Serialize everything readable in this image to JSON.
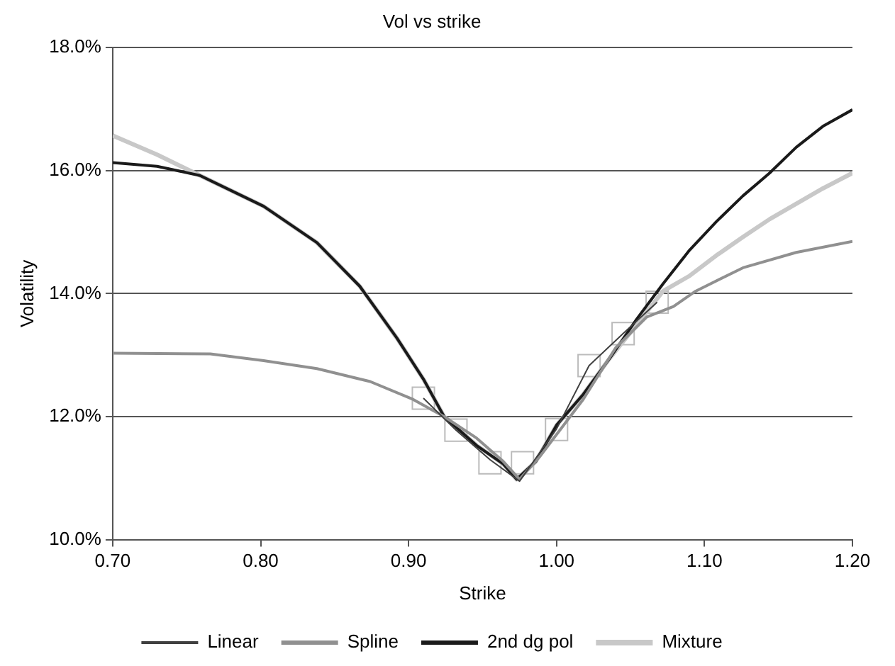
{
  "chart_data": {
    "type": "line",
    "title": "Vol vs strike",
    "xlabel": "Strike",
    "ylabel": "Volatility",
    "xlim": [
      0.7,
      1.2
    ],
    "xticks": [
      {
        "value": 0.7,
        "label": "0.70"
      },
      {
        "value": 0.8,
        "label": "0.80"
      },
      {
        "value": 0.9,
        "label": "0.90"
      },
      {
        "value": 1.0,
        "label": "1.00"
      },
      {
        "value": 1.1,
        "label": "1.10"
      },
      {
        "value": 1.2,
        "label": "1.20"
      }
    ],
    "ylim": [
      10,
      18
    ],
    "yticks": [
      {
        "value": 10,
        "label": "10.0%"
      },
      {
        "value": 12,
        "label": "12.0%"
      },
      {
        "value": 14,
        "label": "14.0%"
      },
      {
        "value": 16,
        "label": "16.0%"
      },
      {
        "value": 18,
        "label": "18.0%"
      }
    ],
    "grid": "y",
    "legend": "bottom",
    "series": [
      {
        "type": "scatter",
        "marker": "square",
        "color": "#bbbbbb",
        "x": [
          0.91,
          0.932,
          0.955,
          0.977,
          1.0,
          1.022,
          1.045,
          1.068
        ],
        "values": [
          12.3,
          11.78,
          11.25,
          11.25,
          11.79,
          12.83,
          13.35,
          13.86
        ]
      },
      {
        "name": "Linear",
        "marker": "none",
        "color": "#404040",
        "x": [
          0.91,
          0.932,
          0.955,
          0.975,
          1.0,
          1.022,
          1.045,
          1.068
        ],
        "values": [
          12.3,
          11.78,
          11.3,
          10.95,
          11.8,
          12.83,
          13.35,
          13.86
        ]
      },
      {
        "name": "Spline",
        "marker": "none",
        "color": "#909090",
        "x": [
          0.7,
          0.766,
          0.802,
          0.838,
          0.874,
          0.903,
          0.924,
          0.946,
          0.964,
          0.975,
          0.989,
          1.018,
          1.04,
          1.061,
          1.079,
          1.094,
          1.126,
          1.162,
          1.2
        ],
        "values": [
          13.03,
          13.02,
          12.91,
          12.78,
          12.57,
          12.28,
          12.0,
          11.65,
          11.27,
          10.98,
          11.36,
          12.28,
          13.12,
          13.62,
          13.79,
          14.04,
          14.42,
          14.67,
          14.85
        ]
      },
      {
        "name": "2nd dg pol",
        "marker": "none",
        "color": "#1a1a1a",
        "x": [
          0.7,
          0.73,
          0.759,
          0.802,
          0.838,
          0.867,
          0.892,
          0.91,
          0.924,
          0.946,
          0.964,
          0.973,
          0.986,
          1.0,
          1.018,
          1.036,
          1.054,
          1.072,
          1.09,
          1.108,
          1.126,
          1.144,
          1.162,
          1.18,
          1.2
        ],
        "values": [
          16.13,
          16.07,
          15.92,
          15.42,
          14.83,
          14.12,
          13.28,
          12.61,
          12.0,
          11.53,
          11.23,
          10.98,
          11.27,
          11.86,
          12.36,
          12.95,
          13.58,
          14.16,
          14.71,
          15.17,
          15.59,
          15.96,
          16.38,
          16.72,
          16.99
        ]
      },
      {
        "name": "Mixture",
        "marker": "none",
        "color": "#c8c8c8",
        "x": [
          0.7,
          0.73,
          0.759,
          0.802,
          0.838,
          0.867,
          0.892,
          0.91,
          0.924,
          0.946,
          0.964,
          0.973,
          0.986,
          1.0,
          1.018,
          1.036,
          1.054,
          1.072,
          1.09,
          1.108,
          1.126,
          1.144,
          1.162,
          1.18,
          1.2
        ],
        "values": [
          16.57,
          16.26,
          15.92,
          15.42,
          14.83,
          14.12,
          13.28,
          12.61,
          12.0,
          11.53,
          11.23,
          10.98,
          11.27,
          11.86,
          12.36,
          12.95,
          13.49,
          14.04,
          14.29,
          14.62,
          14.92,
          15.21,
          15.46,
          15.71,
          15.96
        ]
      }
    ]
  }
}
